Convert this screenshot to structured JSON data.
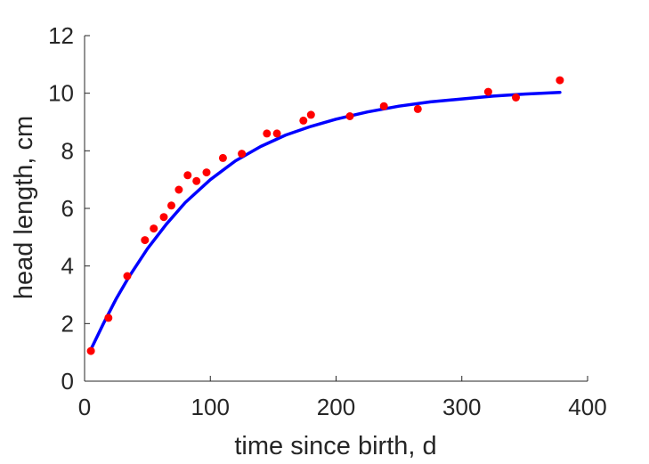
{
  "chart_data": {
    "type": "scatter",
    "xlabel": "time since birth, d",
    "ylabel": "head length, cm",
    "xlim": [
      0,
      400
    ],
    "ylim": [
      0,
      12
    ],
    "xticks": [
      0,
      100,
      200,
      300,
      400
    ],
    "yticks": [
      0,
      2,
      4,
      6,
      8,
      10,
      12
    ],
    "grid": false,
    "legend": "none",
    "series": [
      {
        "kind": "scatter",
        "color": "#ff0000",
        "x": [
          5,
          19,
          34,
          48,
          55,
          63,
          69,
          75,
          82,
          89,
          97,
          110,
          125,
          145,
          153,
          174,
          180,
          211,
          238,
          265,
          321,
          343,
          378
        ],
        "y": [
          1.05,
          2.2,
          3.65,
          4.9,
          5.3,
          5.7,
          6.1,
          6.65,
          7.15,
          6.95,
          7.25,
          7.75,
          7.9,
          8.6,
          8.6,
          9.05,
          9.25,
          9.2,
          9.55,
          9.45,
          10.05,
          9.85,
          10.45
        ]
      },
      {
        "kind": "line",
        "color": "#0000ff",
        "x": [
          5,
          15,
          25,
          35,
          50,
          65,
          80,
          100,
          120,
          140,
          160,
          180,
          200,
          225,
          250,
          275,
          300,
          325,
          350,
          378
        ],
        "y": [
          1.1,
          2.0,
          2.85,
          3.6,
          4.6,
          5.45,
          6.2,
          7.0,
          7.65,
          8.15,
          8.55,
          8.85,
          9.1,
          9.35,
          9.55,
          9.7,
          9.8,
          9.9,
          9.97,
          10.03
        ]
      }
    ]
  }
}
